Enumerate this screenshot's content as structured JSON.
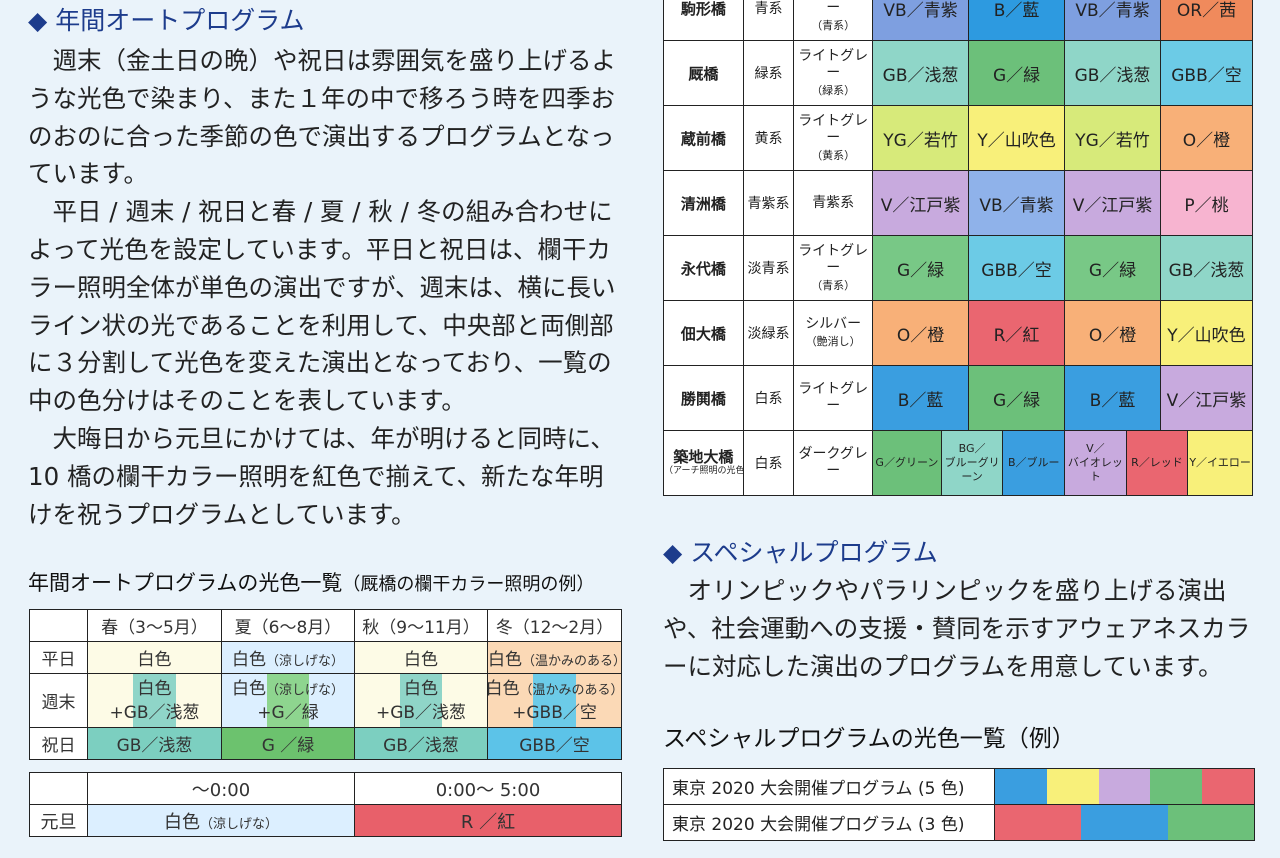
{
  "annual": {
    "heading": "年間オートプログラム",
    "marker": "◆",
    "paragraphs": [
      "週末（金土日の晩）や祝日は雰囲気を盛り上げるような光色で染まり、また１年の中で移ろう時を四季おのおのに合った季節の色で演出するプログラムとなっています。",
      "平日 / 週末 / 祝日と春 / 夏 / 秋 / 冬の組み合わせによって光色を設定しています。平日と祝日は、欄干カラー照明全体が単色の演出ですが、週末は、横に長いライン状の光であることを利用して、中央部と両側部に３分割して光色を変えた演出となっており、一覧の中の色分けはそのことを表しています。",
      "大晦日から元旦にかけては、年が明けると同時に、10 橋の欄干カラー照明を紅色で揃えて、新たな年明けを祝うプログラムとしています。"
    ]
  },
  "season_table": {
    "title": "年間オートプログラムの光色一覧",
    "title_note": "（厩橋の欄干カラー照明の例）",
    "headers": [
      "",
      "春（3～5月）",
      "夏（6～8月）",
      "秋（9～11月）",
      "冬（12～2月）"
    ],
    "rows": [
      {
        "label": "平日",
        "cells": [
          {
            "text": "白色",
            "note": "",
            "bg": "#fdfbe6"
          },
          {
            "text": "白色",
            "note": "（涼しげな）",
            "bg": "#dcefff"
          },
          {
            "text": "白色",
            "note": "",
            "bg": "#fdfbe6"
          },
          {
            "text": "白色",
            "note": "（温かみのある）",
            "bg": "#fbd9b6"
          }
        ]
      },
      {
        "label": "週末",
        "cells": [
          {
            "line1": "白色",
            "note": "",
            "line2": "+GB／浅葱",
            "bg": "#fdfbe6",
            "band": "#8fd5c8"
          },
          {
            "line1": "白色",
            "note": "（涼しげな）",
            "line2": "+G／緑",
            "bg": "#dcefff",
            "band": "#8ed58f"
          },
          {
            "line1": "白色",
            "note": "",
            "line2": "+GB／浅葱",
            "bg": "#fdfbe6",
            "band": "#8fd5c8"
          },
          {
            "line1": "白色",
            "note": "（温かみのある）",
            "line2": "+GBB／空",
            "bg": "#fbd9b6",
            "band": "#6ccbe8"
          }
        ]
      },
      {
        "label": "祝日",
        "cells": [
          {
            "text": "GB／浅葱",
            "bg": "#7ccfc0"
          },
          {
            "text": "G ／緑",
            "bg": "#6cc26e"
          },
          {
            "text": "GB／浅葱",
            "bg": "#7ccfc0"
          },
          {
            "text": "GBB／空",
            "bg": "#5cc3e8"
          }
        ]
      }
    ]
  },
  "newyear_table": {
    "headers": [
      "",
      "～0:00",
      "0:00～ 5:00"
    ],
    "label": "元旦",
    "cells": [
      {
        "text": "白色",
        "note": "（涼しげな）",
        "bg": "#dcefff"
      },
      {
        "text": "R ／紅",
        "bg": "#e8606a"
      }
    ]
  },
  "bridge_table": {
    "rows": [
      {
        "name": "駒形橋",
        "kei": "青系",
        "rail": "ライトグレー",
        "rail_note": "（青系）",
        "colors": [
          {
            "t": "VB／青紫",
            "c": "#7e9fe0"
          },
          {
            "t": "B／藍",
            "c": "#2d9ae0"
          },
          {
            "t": "VB／青紫",
            "c": "#7e9fe0"
          },
          {
            "t": "OR／茜",
            "c": "#f08a5c"
          }
        ]
      },
      {
        "name": "厩橋",
        "kei": "緑系",
        "rail": "ライトグレー",
        "rail_note": "（緑系）",
        "colors": [
          {
            "t": "GB／浅葱",
            "c": "#8fd6c8"
          },
          {
            "t": "G／緑",
            "c": "#6cc07a"
          },
          {
            "t": "GB／浅葱",
            "c": "#8fd6c8"
          },
          {
            "t": "GBB／空",
            "c": "#6ccbe6"
          }
        ]
      },
      {
        "name": "蔵前橋",
        "kei": "黄系",
        "rail": "ライトグレー",
        "rail_note": "（黄系）",
        "colors": [
          {
            "t": "YG／若竹",
            "c": "#d7ea7a"
          },
          {
            "t": "Y／山吹色",
            "c": "#f8f07a"
          },
          {
            "t": "YG／若竹",
            "c": "#d7ea7a"
          },
          {
            "t": "O／橙",
            "c": "#f8b078"
          }
        ]
      },
      {
        "name": "清洲橋",
        "kei": "青紫系",
        "rail": "青紫系",
        "rail_note": "",
        "colors": [
          {
            "t": "V／江戸紫",
            "c": "#c8aade"
          },
          {
            "t": "VB／青紫",
            "c": "#8fb2ea"
          },
          {
            "t": "V／江戸紫",
            "c": "#c8aade"
          },
          {
            "t": "P／桃",
            "c": "#f7b4d0"
          }
        ]
      },
      {
        "name": "永代橋",
        "kei": "淡青系",
        "rail": "ライトグレー",
        "rail_note": "（青系）",
        "colors": [
          {
            "t": "G／緑",
            "c": "#78c886"
          },
          {
            "t": "GBB／空",
            "c": "#6ccbe6"
          },
          {
            "t": "G／緑",
            "c": "#78c886"
          },
          {
            "t": "GB／浅葱",
            "c": "#8fd6c8"
          }
        ]
      },
      {
        "name": "佃大橋",
        "kei": "淡緑系",
        "rail": "シルバー",
        "rail_note": "（艶消し）",
        "colors": [
          {
            "t": "O／橙",
            "c": "#f8b078"
          },
          {
            "t": "R／紅",
            "c": "#ea6670"
          },
          {
            "t": "O／橙",
            "c": "#f8b078"
          },
          {
            "t": "Y／山吹色",
            "c": "#f8f07a"
          }
        ]
      },
      {
        "name": "勝鬨橋",
        "kei": "白系",
        "rail": "ライトグレー",
        "rail_note": "",
        "colors": [
          {
            "t": "B／藍",
            "c": "#3a9ee0"
          },
          {
            "t": "G／緑",
            "c": "#6cc07a"
          },
          {
            "t": "B／藍",
            "c": "#3a9ee0"
          },
          {
            "t": "V／江戸紫",
            "c": "#c8aade"
          }
        ]
      }
    ],
    "last_row": {
      "name": "築地大橋",
      "name_note": "（アーチ照明の光色）",
      "kei": "白系",
      "rail": "ダークグレー",
      "colors": [
        {
          "t": "G／グリーン",
          "c": "#6cc07a"
        },
        {
          "t": "BG／\nブルーグリーン",
          "c": "#8fd6c8"
        },
        {
          "t": "B／ブルー",
          "c": "#3a9ee0"
        },
        {
          "t": "V／\nバイオレット",
          "c": "#c8aade"
        },
        {
          "t": "R／レッド",
          "c": "#ea6670"
        },
        {
          "t": "Y／イエロー",
          "c": "#f8f07a"
        }
      ]
    }
  },
  "special": {
    "heading": "スペシャルプログラム",
    "marker": "◆",
    "paragraph": "オリンピックやパラリンピックを盛り上げる演出や、社会運動への支援・賛同を示すアウェアネスカラーに対応した演出のプログラムを用意しています。"
  },
  "special_table": {
    "title": "スペシャルプログラムの光色一覧（例）",
    "rows": [
      {
        "label": "東京 2020 大会開催プログラム (5 色)",
        "colors": [
          "#3a9ee0",
          "#f8f07a",
          "#c8aade",
          "#6cc07a",
          "#ea6670"
        ]
      },
      {
        "label": "東京 2020 大会開催プログラム (3 色)",
        "colors": [
          "#ea6670",
          "#3a9ee0",
          "#6cc07a"
        ]
      }
    ]
  }
}
